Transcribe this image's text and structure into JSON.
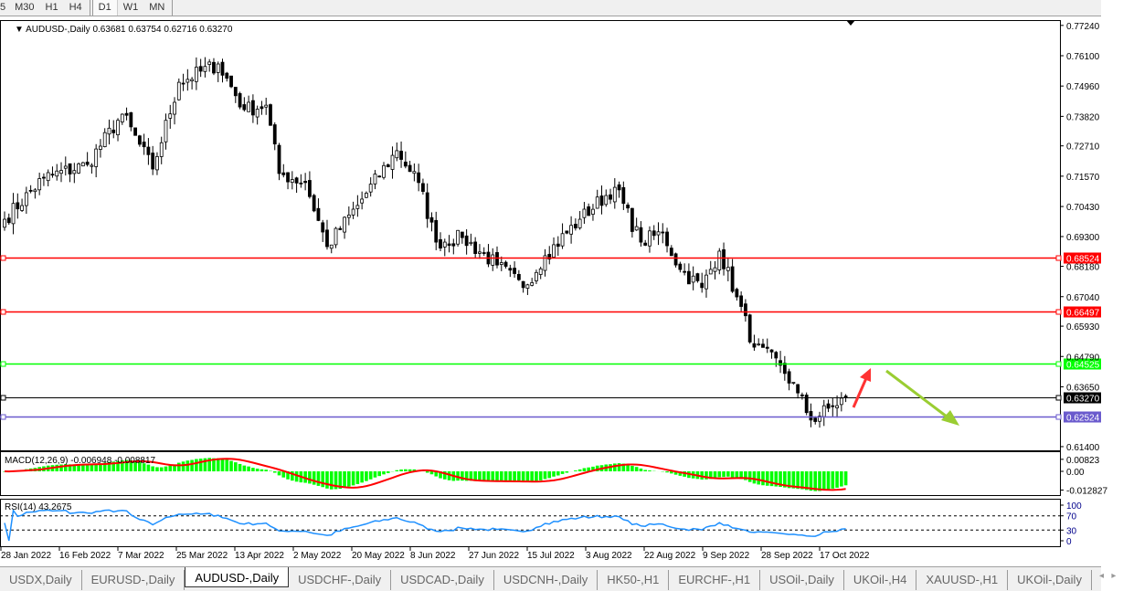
{
  "toolbar": {
    "timeframes": [
      "5",
      "M30",
      "H1",
      "H4",
      "D1",
      "W1",
      "MN"
    ],
    "selected": "D1"
  },
  "chart_header": {
    "symbol": "AUDUSD-,Daily",
    "open": "0.63681",
    "high": "0.63754",
    "low": "0.62716",
    "close": "0.63270"
  },
  "price_axis": {
    "labels": [
      "0.77240",
      "0.76100",
      "0.74960",
      "0.73820",
      "0.72710",
      "0.71570",
      "0.70430",
      "0.69300",
      "0.68180",
      "0.67040",
      "0.65930",
      "0.64790",
      "0.63650",
      "0.61400"
    ]
  },
  "levels": [
    {
      "price": "0.68524",
      "color": "#ff0000"
    },
    {
      "price": "0.66497",
      "color": "#ff0000"
    },
    {
      "price": "0.64525",
      "color": "#00ff00"
    },
    {
      "price": "0.63270",
      "color": "#000000"
    },
    {
      "price": "0.62524",
      "color": "#6a5acd"
    }
  ],
  "annotations": [
    {
      "type": "arrow",
      "color": "#ff3333",
      "direction": "up"
    },
    {
      "type": "arrow",
      "color": "#9acd32",
      "direction": "down"
    }
  ],
  "macd": {
    "label": "MACD(12,26,9) -0.006948 -0.008817",
    "axis": [
      "0.00823",
      "0.00",
      "-0.012827"
    ],
    "hist_color": "#00ff00",
    "signal_color": "#ff0000"
  },
  "rsi": {
    "label": "RSI(14) 43.2675",
    "axis": [
      "100",
      "70",
      "30",
      "0"
    ],
    "line_color": "#1e90ff"
  },
  "date_axis": [
    "28 Jan 2022",
    "16 Feb 2022",
    "7 Mar 2022",
    "25 Mar 2022",
    "13 Apr 2022",
    "2 May 2022",
    "20 May 2022",
    "8 Jun 2022",
    "27 Jun 2022",
    "15 Jul 2022",
    "3 Aug 2022",
    "22 Aug 2022",
    "9 Sep 2022",
    "28 Sep 2022",
    "17 Oct 2022"
  ],
  "tabs": [
    {
      "label": "USDX,Daily"
    },
    {
      "label": "EURUSD-,Daily"
    },
    {
      "label": "AUDUSD-,Daily",
      "active": true
    },
    {
      "label": "USDCHF-,Daily"
    },
    {
      "label": "USDCAD-,Daily"
    },
    {
      "label": "USDCNH-,Daily"
    },
    {
      "label": "HK50-,H1"
    },
    {
      "label": "EURCHF-,H1"
    },
    {
      "label": "USOil-,Daily"
    },
    {
      "label": "UKOil-,H4"
    },
    {
      "label": "XAUUSD-,H1"
    },
    {
      "label": "UKOil-,Daily"
    }
  ],
  "tab_nav": {
    "prev": "◂",
    "next": "▸"
  },
  "chart_data": {
    "type": "candlestick",
    "symbol": "AUDUSD-",
    "timeframe": "Daily",
    "ylim": [
      0.614,
      0.7724
    ],
    "close_waypoints": [
      [
        "2022-01-28",
        0.6995
      ],
      [
        "2022-02-10",
        0.715
      ],
      [
        "2022-02-24",
        0.7201
      ],
      [
        "2022-03-08",
        0.739
      ],
      [
        "2022-03-17",
        0.7184
      ],
      [
        "2022-03-25",
        0.751
      ],
      [
        "2022-04-07",
        0.7579
      ],
      [
        "2022-04-15",
        0.7407
      ],
      [
        "2022-04-22",
        0.7424
      ],
      [
        "2022-04-27",
        0.7167
      ],
      [
        "2022-05-05",
        0.7133
      ],
      [
        "2022-05-12",
        0.6892
      ],
      [
        "2022-05-23",
        0.7047
      ],
      [
        "2022-06-03",
        0.7253
      ],
      [
        "2022-06-10",
        0.7133
      ],
      [
        "2022-06-16",
        0.6909
      ],
      [
        "2022-06-24",
        0.6926
      ],
      [
        "2022-07-06",
        0.6823
      ],
      [
        "2022-07-14",
        0.6738
      ],
      [
        "2022-07-21",
        0.6858
      ],
      [
        "2022-08-02",
        0.6995
      ],
      [
        "2022-08-12",
        0.7115
      ],
      [
        "2022-08-22",
        0.6909
      ],
      [
        "2022-08-29",
        0.6944
      ],
      [
        "2022-09-02",
        0.6806
      ],
      [
        "2022-09-09",
        0.6738
      ],
      [
        "2022-09-15",
        0.6875
      ],
      [
        "2022-09-21",
        0.6703
      ],
      [
        "2022-09-27",
        0.6514
      ],
      [
        "2022-10-05",
        0.6446
      ],
      [
        "2022-10-11",
        0.6342
      ],
      [
        "2022-10-14",
        0.624
      ],
      [
        "2022-10-21",
        0.6291
      ],
      [
        "2022-10-26",
        0.6327
      ]
    ]
  }
}
